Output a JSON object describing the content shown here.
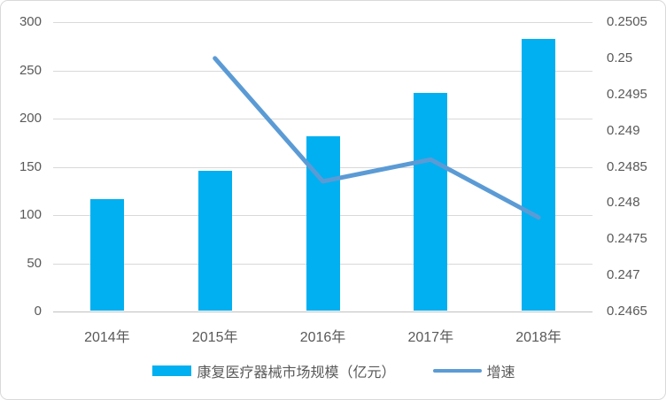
{
  "figure": {
    "background": "#FFFFFF",
    "border_color": "#D9D9D9"
  },
  "colors": {
    "bar": "#00B0F0",
    "line": "#5B9BD5",
    "gridline": "#D9D9D9",
    "axis_line": "#C0C0C0",
    "text": "#595959"
  },
  "legend": {
    "bar_label": "康复医疗器械市场规模（亿元）",
    "line_label": "增速"
  },
  "chart_data": {
    "type": "bar",
    "title": "",
    "categories": [
      "2014年",
      "2015年",
      "2016年",
      "2017年",
      "2018年"
    ],
    "series": [
      {
        "name": "康复医疗器械市场规模（亿元）",
        "type": "bar",
        "axis": "left",
        "color": "#00B0F0",
        "values": [
          116,
          145,
          181,
          226,
          282
        ]
      },
      {
        "name": "增速",
        "type": "line",
        "axis": "right",
        "color": "#5B9BD5",
        "values": [
          null,
          0.25,
          0.2483,
          0.2486,
          0.2478
        ]
      }
    ],
    "left_axis": {
      "min": 0,
      "max": 300,
      "step": 50,
      "tick_labels": [
        "300",
        "250",
        "200",
        "150",
        "100",
        "50",
        "0"
      ]
    },
    "right_axis": {
      "min": 0.2465,
      "max": 0.2505,
      "step": 0.0005,
      "tick_labels": [
        "0.2505",
        "0.25",
        "0.2495",
        "0.249",
        "0.2485",
        "0.248",
        "0.2475",
        "0.247",
        "0.2465"
      ]
    },
    "grid": true,
    "legend_position": "bottom"
  }
}
